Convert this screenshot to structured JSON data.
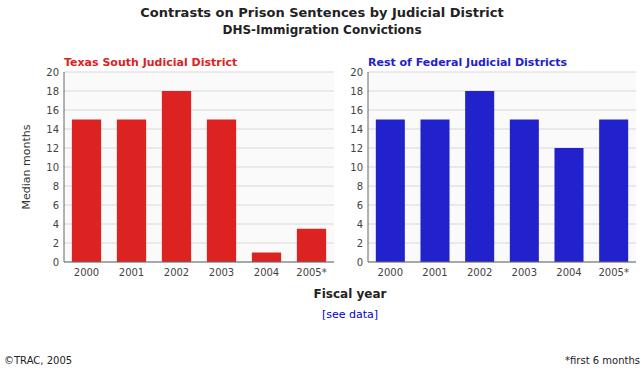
{
  "title": "Contrasts on Prison Sentences by Judicial District",
  "subtitle": "DHS-Immigration Convictions",
  "xlabel": "Fiscal year",
  "annotations": [
    "[see data]",
    "©TRAC, 2005",
    "*first 6 months"
  ],
  "chart_data": [
    {
      "type": "bar",
      "title": "Texas South Judicial District",
      "categories": [
        "2000",
        "2001",
        "2002",
        "2003",
        "2004",
        "2005*"
      ],
      "values": [
        15,
        15,
        18,
        15,
        1,
        3.5
      ],
      "color": "#dd2222",
      "ylabel": "Median months",
      "ylim": [
        0,
        20
      ],
      "yticks": [
        0,
        2,
        4,
        6,
        8,
        10,
        12,
        14,
        16,
        18,
        20
      ],
      "grid": true
    },
    {
      "type": "bar",
      "title": "Rest of Federal Judicial Districts",
      "categories": [
        "2000",
        "2001",
        "2002",
        "2003",
        "2004",
        "2005*"
      ],
      "values": [
        15,
        15,
        18,
        15,
        12,
        15
      ],
      "color": "#2222cc",
      "ylim": [
        0,
        20
      ],
      "yticks": [
        0,
        2,
        4,
        6,
        8,
        10,
        12,
        14,
        16,
        18,
        20
      ],
      "grid": true
    }
  ]
}
